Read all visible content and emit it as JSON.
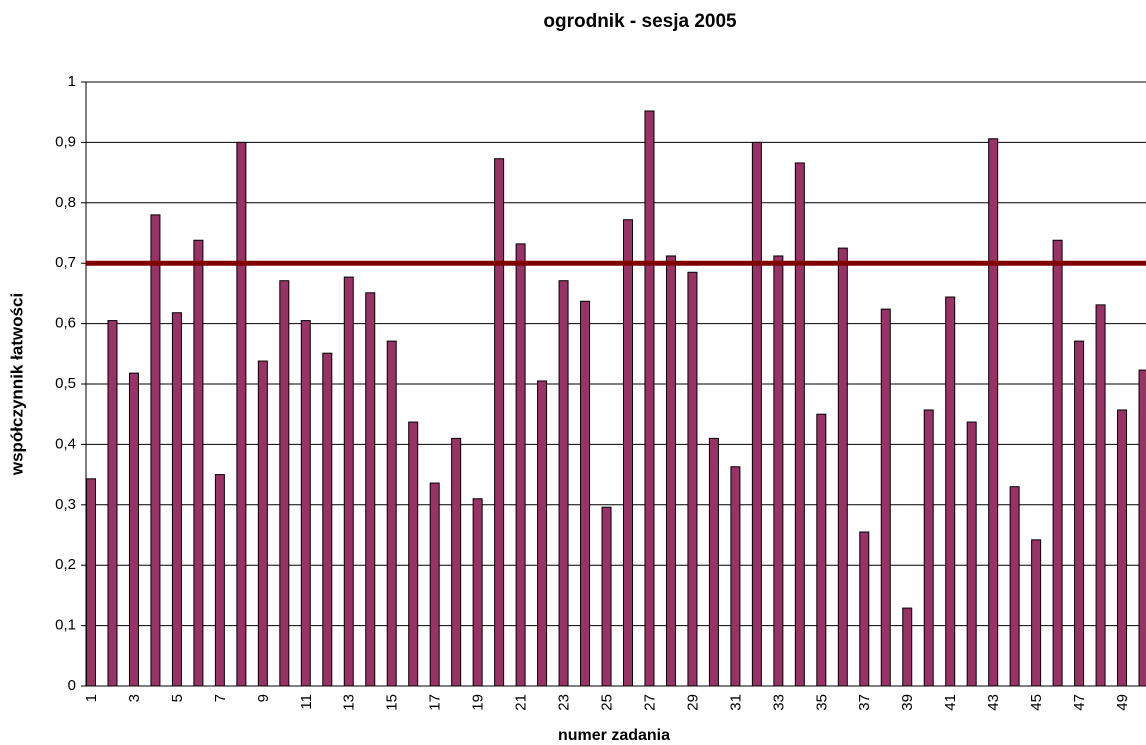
{
  "chart_data": {
    "type": "bar",
    "title": "ogrodnik - sesja 2005",
    "x_label": "numer zadania",
    "y_label": "współczynnik łatwości",
    "categories": [
      "1",
      null,
      "3",
      null,
      "5",
      null,
      "7",
      null,
      "9",
      null,
      "11",
      null,
      "13",
      null,
      "15",
      null,
      "17",
      null,
      "19",
      null,
      "21",
      null,
      "23",
      null,
      "25",
      null,
      "27",
      null,
      "29",
      null,
      "31",
      null,
      "33",
      null,
      "35",
      null,
      "37",
      null,
      "39",
      null,
      "41",
      null,
      "43",
      null,
      "45",
      null,
      "47",
      null,
      "49",
      null
    ],
    "values": [
      0.343,
      0.605,
      0.518,
      0.78,
      0.618,
      0.738,
      0.35,
      0.9,
      0.538,
      0.671,
      0.605,
      0.551,
      0.677,
      0.651,
      0.571,
      0.437,
      0.336,
      0.41,
      0.31,
      0.873,
      0.732,
      0.505,
      0.671,
      0.637,
      0.296,
      0.772,
      0.952,
      0.712,
      0.685,
      0.41,
      0.363,
      0.9,
      0.712,
      0.866,
      0.45,
      0.725,
      0.255,
      0.624,
      0.129,
      0.457,
      0.644,
      0.437,
      0.906,
      0.33,
      0.242,
      0.738,
      0.571,
      0.631,
      0.457,
      0.523
    ],
    "color": "#993366",
    "reference_line": {
      "value": 0.7,
      "color": "#800000"
    },
    "ylim": [
      0,
      1
    ],
    "yticks": [
      0,
      {
        "value": 0.1,
        "label": "0,1"
      },
      {
        "value": 0.2,
        "label": "0,2"
      },
      {
        "value": 0.3,
        "label": "0,3"
      },
      {
        "value": 0.4,
        "label": "0,4"
      },
      {
        "value": 0.5,
        "label": "0,5"
      },
      {
        "value": 0.6,
        "label": "0,6"
      },
      {
        "value": 0.7,
        "label": "0,7"
      },
      {
        "value": 0.8,
        "label": "0,8"
      },
      {
        "value": 0.9,
        "label": "0,9"
      },
      1
    ],
    "grid": true
  }
}
